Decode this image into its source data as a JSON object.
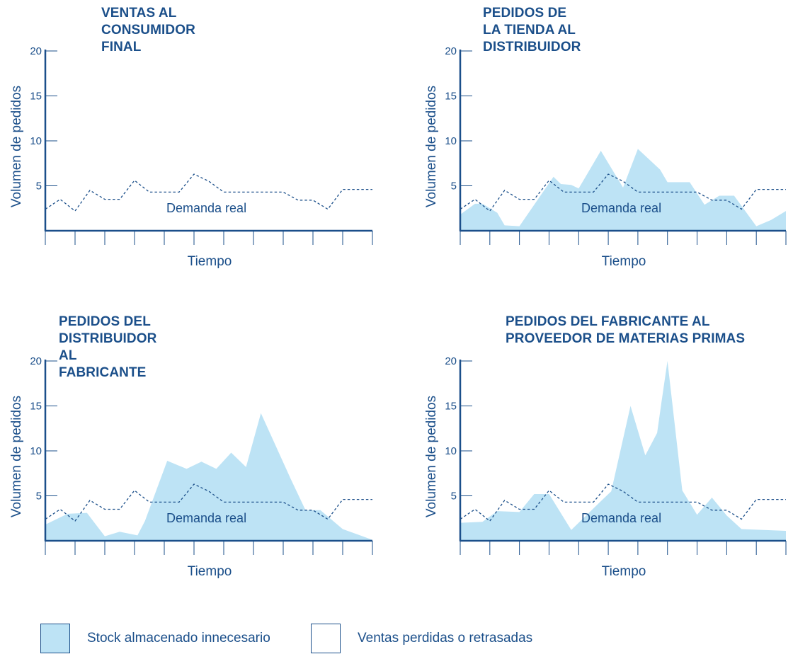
{
  "colors": {
    "axis": "#1b4f8a",
    "fill": "#bde3f5",
    "demand": "#1b4f8a"
  },
  "legend": [
    {
      "label": "Stock almacenado innecesario",
      "kind": "filled"
    },
    {
      "label": "Ventas perdidas o retrasadas",
      "kind": "empty"
    }
  ],
  "chart_data": [
    {
      "type": "area",
      "title": "VENTAS AL CONSUMIDOR FINAL",
      "xlabel": "Tiempo",
      "ylabel": "Volumen de pedidos",
      "ylim": [
        0,
        20
      ],
      "yticks": [
        5,
        10,
        15,
        20
      ],
      "annotation": "Demanda real",
      "demand": {
        "x": [
          0,
          1,
          2,
          3,
          4,
          5,
          6,
          7,
          8,
          9,
          10,
          11,
          12,
          13,
          14,
          15,
          16,
          17,
          18,
          19,
          20,
          21,
          22
        ],
        "y": [
          2.4,
          3.5,
          2.2,
          4.5,
          3.5,
          3.5,
          5.6,
          4.3,
          4.3,
          4.3,
          6.3,
          5.5,
          4.3,
          4.3,
          4.3,
          4.3,
          4.3,
          3.4,
          3.4,
          2.4,
          4.6,
          4.6,
          4.6
        ]
      },
      "stock": null
    },
    {
      "type": "area",
      "title": "PEDIDOS DE LA TIENDA AL DISTRIBUIDOR",
      "xlabel": "Tiempo",
      "ylabel": "Volumen de pedidos",
      "ylim": [
        0,
        20
      ],
      "yticks": [
        5,
        10,
        15,
        20
      ],
      "annotation": "Demanda real",
      "demand": {
        "x": [
          0,
          1,
          2,
          3,
          4,
          5,
          6,
          7,
          8,
          9,
          10,
          11,
          12,
          13,
          14,
          15,
          16,
          17,
          18,
          19,
          20,
          21,
          22
        ],
        "y": [
          2.4,
          3.5,
          2.2,
          4.5,
          3.5,
          3.5,
          5.6,
          4.3,
          4.3,
          4.3,
          6.3,
          5.5,
          4.3,
          4.3,
          4.3,
          4.3,
          4.3,
          3.4,
          3.4,
          2.4,
          4.6,
          4.6,
          4.6
        ]
      },
      "stock": {
        "x": [
          0,
          1,
          1.5,
          2.5,
          3,
          4,
          6.3,
          6.8,
          7.5,
          8,
          9.5,
          11,
          12,
          13.5,
          14,
          15.5,
          16.5,
          17.5,
          18.5,
          20,
          21,
          22
        ],
        "y": [
          1.8,
          3.0,
          3.0,
          2.0,
          0.6,
          0.5,
          6.0,
          5.2,
          5.1,
          4.7,
          8.9,
          4.8,
          9.1,
          6.8,
          5.4,
          5.4,
          2.9,
          3.9,
          3.9,
          0.5,
          1.2,
          2.2
        ]
      }
    },
    {
      "type": "area",
      "title": "PEDIDOS DEL DISTRIBUIDOR AL FABRICANTE",
      "xlabel": "Tiempo",
      "ylabel": "Volumen de pedidos",
      "ylim": [
        0,
        20
      ],
      "yticks": [
        5,
        10,
        15,
        20
      ],
      "annotation": "Demanda real",
      "demand": {
        "x": [
          0,
          1,
          2,
          3,
          4,
          5,
          6,
          7,
          8,
          9,
          10,
          11,
          12,
          13,
          14,
          15,
          16,
          17,
          18,
          19,
          20,
          21,
          22
        ],
        "y": [
          2.4,
          3.5,
          2.2,
          4.5,
          3.5,
          3.5,
          5.6,
          4.3,
          4.3,
          4.3,
          6.3,
          5.5,
          4.3,
          4.3,
          4.3,
          4.3,
          4.3,
          3.4,
          3.4,
          2.4,
          4.6,
          4.6,
          4.6
        ]
      },
      "stock": {
        "x": [
          0,
          1.5,
          2.8,
          4,
          5,
          6.2,
          6.7,
          8.2,
          9.5,
          10.5,
          11.5,
          12.5,
          13.5,
          14.5,
          16.5,
          17.5,
          18.5,
          20,
          22
        ],
        "y": [
          1.8,
          3.0,
          3.1,
          0.5,
          1.0,
          0.6,
          2.2,
          8.9,
          8.0,
          8.8,
          8.0,
          9.8,
          8.2,
          14.2,
          6.9,
          3.4,
          3.4,
          1.3,
          0.1
        ]
      }
    },
    {
      "type": "area",
      "title": "PEDIDOS DEL FABRICANTE AL PROVEEDOR DE MATERIAS PRIMAS",
      "xlabel": "Tiempo",
      "ylabel": "Volumen de pedidos",
      "ylim": [
        0,
        20
      ],
      "yticks": [
        5,
        10,
        15,
        20
      ],
      "annotation": "Demanda real",
      "demand": {
        "x": [
          0,
          1,
          2,
          3,
          4,
          5,
          6,
          7,
          8,
          9,
          10,
          11,
          12,
          13,
          14,
          15,
          16,
          17,
          18,
          19,
          20,
          21,
          22
        ],
        "y": [
          2.4,
          3.5,
          2.2,
          4.5,
          3.5,
          3.5,
          5.6,
          4.3,
          4.3,
          4.3,
          6.3,
          5.5,
          4.3,
          4.3,
          4.3,
          4.3,
          4.3,
          3.4,
          3.4,
          2.4,
          4.6,
          4.6,
          4.6
        ]
      },
      "stock": {
        "x": [
          0,
          1.5,
          2.5,
          4,
          5,
          6,
          7.5,
          9.5,
          10.2,
          11.5,
          12.5,
          13.3,
          13.6,
          14,
          15,
          16,
          17,
          18,
          19,
          22
        ],
        "y": [
          2.0,
          2.1,
          3.3,
          3.2,
          5.2,
          5.2,
          1.2,
          4.4,
          5.5,
          15.0,
          9.5,
          12.0,
          15.5,
          20.0,
          5.6,
          2.9,
          4.8,
          2.8,
          1.3,
          1.1
        ]
      }
    }
  ]
}
